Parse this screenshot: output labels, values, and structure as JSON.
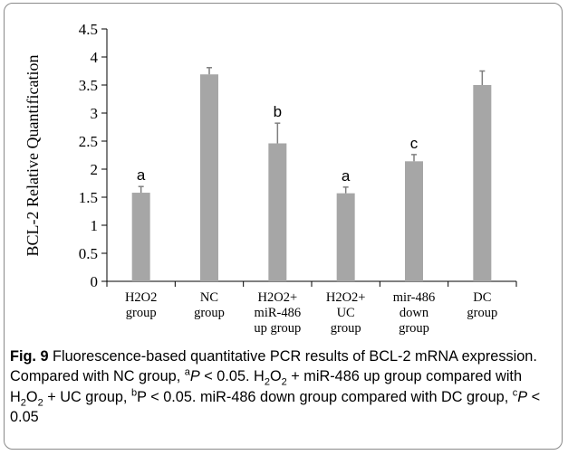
{
  "chart_data": {
    "type": "bar",
    "categories": [
      [
        "H2O2",
        "group"
      ],
      [
        "NC",
        "group"
      ],
      [
        "H2O2+",
        "miR-486",
        "up group"
      ],
      [
        "H2O2+",
        "UC",
        "group"
      ],
      [
        "mir-486",
        "down",
        "group"
      ],
      [
        "DC",
        "group"
      ]
    ],
    "values": [
      1.58,
      3.69,
      2.46,
      1.57,
      2.14,
      3.5
    ],
    "errors": [
      0.11,
      0.12,
      0.36,
      0.11,
      0.12,
      0.25
    ],
    "significance": [
      "a",
      "",
      "b",
      "a",
      "c",
      ""
    ],
    "ylabel": "BCL-2 Relative Quantification",
    "ylim": [
      0,
      4.5
    ],
    "yticks": [
      "0",
      "0.5",
      "1",
      "1.5",
      "2",
      "2.5",
      "3",
      "3.5",
      "4",
      "4.5"
    ],
    "bar_color": "#a6a6a6",
    "error_bar_color": "#7f7f7f",
    "grid": false
  },
  "caption": {
    "label": "Fig. 9",
    "parts": [
      {
        "t": " Fluorescence-based quantitative PCR results of BCL-2 mRNA expression. Compared with NC group, "
      },
      {
        "t": "a",
        "s": "sup"
      },
      {
        "t": "P",
        "s": "i"
      },
      {
        "t": " < 0.05. H"
      },
      {
        "t": "2",
        "s": "sub"
      },
      {
        "t": "O"
      },
      {
        "t": "2",
        "s": "sub"
      },
      {
        "t": " + miR-486 up group compared with H"
      },
      {
        "t": "2",
        "s": "sub"
      },
      {
        "t": "O"
      },
      {
        "t": "2",
        "s": "sub"
      },
      {
        "t": " + UC group, "
      },
      {
        "t": "b",
        "s": "sup"
      },
      {
        "t": "P < 0.05. miR-486 down group compared with DC group, "
      },
      {
        "t": "c",
        "s": "sup"
      },
      {
        "t": "P",
        "s": "i"
      },
      {
        "t": " < 0.05"
      }
    ]
  }
}
